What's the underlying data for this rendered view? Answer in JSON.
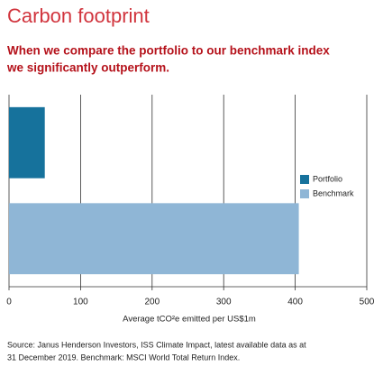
{
  "chart_data": {
    "type": "bar",
    "orientation": "horizontal",
    "title": "Carbon footprint",
    "subtitle": [
      "When we compare the portfolio to our benchmark index",
      "we significantly outperform."
    ],
    "xlabel": "Average tCO²e emitted per US$1m",
    "series": [
      {
        "name": "Portfolio",
        "color": "#16729c",
        "values": [
          50
        ]
      },
      {
        "name": "Benchmark",
        "color": "#8fb6d6",
        "values": [
          405
        ]
      }
    ],
    "xlim": [
      0,
      500
    ],
    "xticks": [
      0,
      100,
      200,
      300,
      400,
      500
    ],
    "grid": true,
    "legend": "right",
    "source": [
      "Source: Janus Henderson Investors, ISS Climate Impact, latest available data as at",
      "31 December 2019.  Benchmark: MSCI World Total Return Index."
    ]
  }
}
